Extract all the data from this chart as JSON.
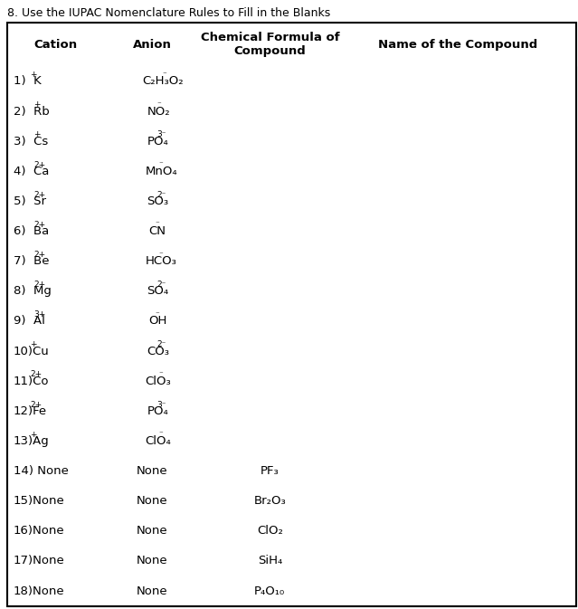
{
  "title": "8. Use the IUPAC Nomenclature Rules to Fill in the Blanks",
  "headers": [
    "Cation",
    "Anion",
    "Chemical Formula of\nCompound",
    "Name of the Compound"
  ],
  "rows": [
    {
      "cation": "1)  K",
      "cation_sup": "+",
      "anion": "C₂H₃O₂",
      "anion_sup": "⁻",
      "formula": ""
    },
    {
      "cation": "2)  Rb",
      "cation_sup": "+",
      "anion": "NO₂",
      "anion_sup": "⁻",
      "formula": ""
    },
    {
      "cation": "3)  Cs",
      "cation_sup": "+",
      "anion": "PO₄",
      "anion_sup": "3⁻",
      "formula": ""
    },
    {
      "cation": "4)  Ca",
      "cation_sup": "2+",
      "anion": "MnO₄",
      "anion_sup": "⁻",
      "formula": ""
    },
    {
      "cation": "5)  Sr",
      "cation_sup": "2+",
      "anion": "SO₃",
      "anion_sup": "2⁻",
      "formula": ""
    },
    {
      "cation": "6)  Ba",
      "cation_sup": "2+",
      "anion": "CN",
      "anion_sup": "⁻",
      "formula": ""
    },
    {
      "cation": "7)  Be",
      "cation_sup": "2+",
      "anion": "HCO₃",
      "anion_sup": "⁻",
      "formula": ""
    },
    {
      "cation": "8)  Mg",
      "cation_sup": "2+",
      "anion": "SO₄",
      "anion_sup": "2⁻",
      "formula": ""
    },
    {
      "cation": "9)  Al",
      "cation_sup": "3+",
      "anion": "OH",
      "anion_sup": "⁻",
      "formula": ""
    },
    {
      "cation": "10)Cu",
      "cation_sup": "+",
      "anion": "CO₃",
      "anion_sup": "2⁻",
      "formula": ""
    },
    {
      "cation": "11)Co",
      "cation_sup": "2+",
      "anion": "ClO₃",
      "anion_sup": "⁻",
      "formula": ""
    },
    {
      "cation": "12)Fe",
      "cation_sup": "2+",
      "anion": "PO₄",
      "anion_sup": "3⁻",
      "formula": ""
    },
    {
      "cation": "13)Ag",
      "cation_sup": "+",
      "anion": "ClO₄",
      "anion_sup": "⁻",
      "formula": ""
    },
    {
      "cation": "14) None",
      "cation_sup": "",
      "anion": "None",
      "anion_sup": "",
      "formula": "PF₃"
    },
    {
      "cation": "15)None",
      "cation_sup": "",
      "anion": "None",
      "anion_sup": "",
      "formula": "Br₂O₃"
    },
    {
      "cation": "16)None",
      "cation_sup": "",
      "anion": "None",
      "anion_sup": "",
      "formula": "ClO₂"
    },
    {
      "cation": "17)None",
      "cation_sup": "",
      "anion": "None",
      "anion_sup": "",
      "formula": "SiH₄"
    },
    {
      "cation": "18)None",
      "cation_sup": "",
      "anion": "None",
      "anion_sup": "",
      "formula": "P₄O₁₀"
    }
  ],
  "border_color": "#5a5a5a",
  "header_border_color": "#000000",
  "text_color": "#000000",
  "title_fontsize": 9.0,
  "header_fontsize": 9.5,
  "cell_fontsize": 9.5,
  "sup_fontsize": 6.5
}
